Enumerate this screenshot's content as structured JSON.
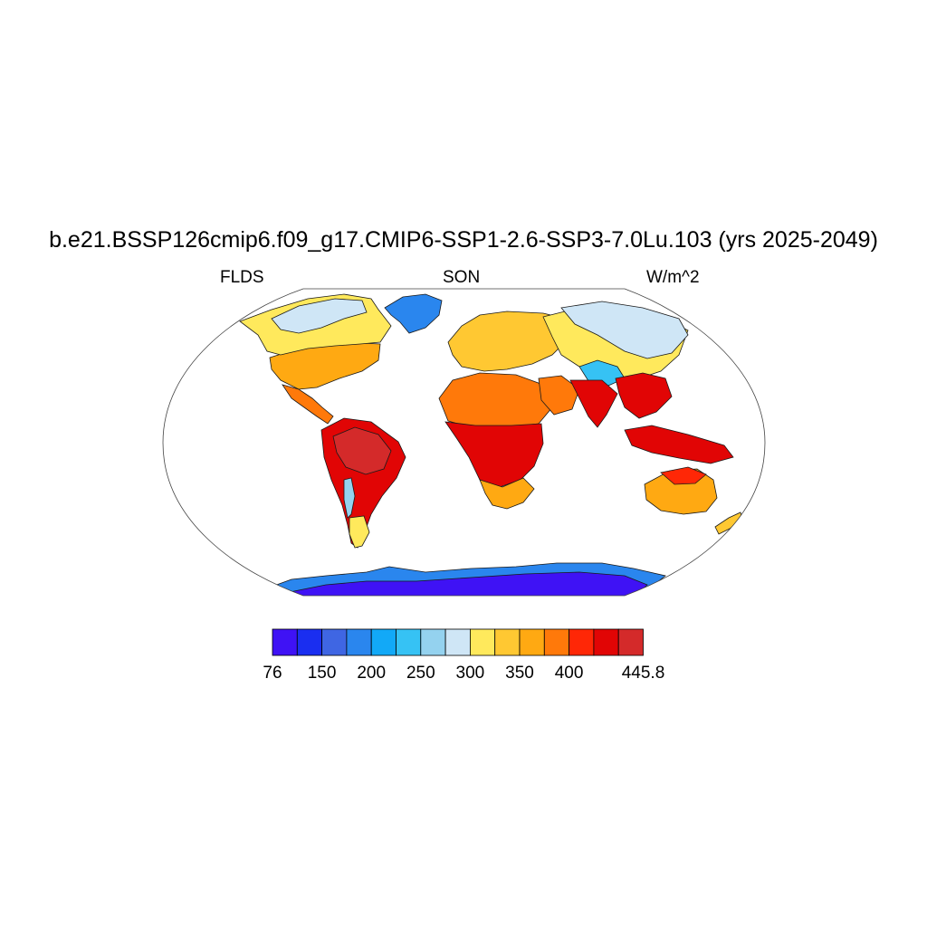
{
  "plot": {
    "title": "b.e21.BSSP126cmip6.f09_g17.CMIP6-SSP1-2.6-SSP3-7.0Lu.103 (yrs 2025-2049)",
    "variable": "FLDS",
    "season": "SON",
    "units": "W/m^2",
    "projection": "robinson",
    "background_color": "#ffffff"
  },
  "colorbar": {
    "colors": [
      "#3f12f5",
      "#1a2ef0",
      "#3f66e3",
      "#2a86ee",
      "#12a9f7",
      "#36c2f4",
      "#94d2ef",
      "#cfe6f6",
      "#ffe95c",
      "#ffc832",
      "#ffa912",
      "#ff790a",
      "#ff2706",
      "#e10505",
      "#d42a2a"
    ],
    "tick_labels": [
      "76",
      "150",
      "200",
      "250",
      "300",
      "350",
      "400",
      "445.8"
    ],
    "tick_boundary_index": [
      0,
      2,
      4,
      6,
      8,
      10,
      12,
      15
    ]
  },
  "chart_data": {
    "type": "heatmap",
    "title": "b.e21.BSSP126cmip6.f09_g17.CMIP6-SSP1-2.6-SSP3-7.0Lu.103 (yrs 2025-2049)",
    "variable": "FLDS",
    "season": "SON",
    "units": "W/m^2",
    "range": [
      76,
      445.8
    ],
    "regions": [
      {
        "name": "antarctica",
        "color": "#3f12f5"
      },
      {
        "name": "antarctica-coast",
        "color": "#2a86ee"
      },
      {
        "name": "greenland",
        "color": "#2a86ee"
      },
      {
        "name": "north-america-arctic",
        "color": "#cfe6f6"
      },
      {
        "name": "north-america",
        "color": "#ffe95c"
      },
      {
        "name": "north-america-south",
        "color": "#ffa912"
      },
      {
        "name": "central-america",
        "color": "#ff790a"
      },
      {
        "name": "south-america",
        "color": "#e10505"
      },
      {
        "name": "amazon",
        "color": "#d42a2a"
      },
      {
        "name": "andes",
        "color": "#94d2ef"
      },
      {
        "name": "patagonia",
        "color": "#ffe95c"
      },
      {
        "name": "europe",
        "color": "#ffc832"
      },
      {
        "name": "siberia",
        "color": "#cfe6f6"
      },
      {
        "name": "central-asia",
        "color": "#ffe95c"
      },
      {
        "name": "tibet",
        "color": "#36c2f4"
      },
      {
        "name": "sahara",
        "color": "#ff790a"
      },
      {
        "name": "central-africa",
        "color": "#e10505"
      },
      {
        "name": "southern-africa",
        "color": "#ffa912"
      },
      {
        "name": "arabia",
        "color": "#ff790a"
      },
      {
        "name": "india",
        "color": "#e10505"
      },
      {
        "name": "southeast-asia",
        "color": "#e10505"
      },
      {
        "name": "maritime-continent",
        "color": "#e10505"
      },
      {
        "name": "australia",
        "color": "#ffa912"
      },
      {
        "name": "australia-north",
        "color": "#ff2706"
      },
      {
        "name": "new-zealand",
        "color": "#ffc832"
      }
    ]
  }
}
